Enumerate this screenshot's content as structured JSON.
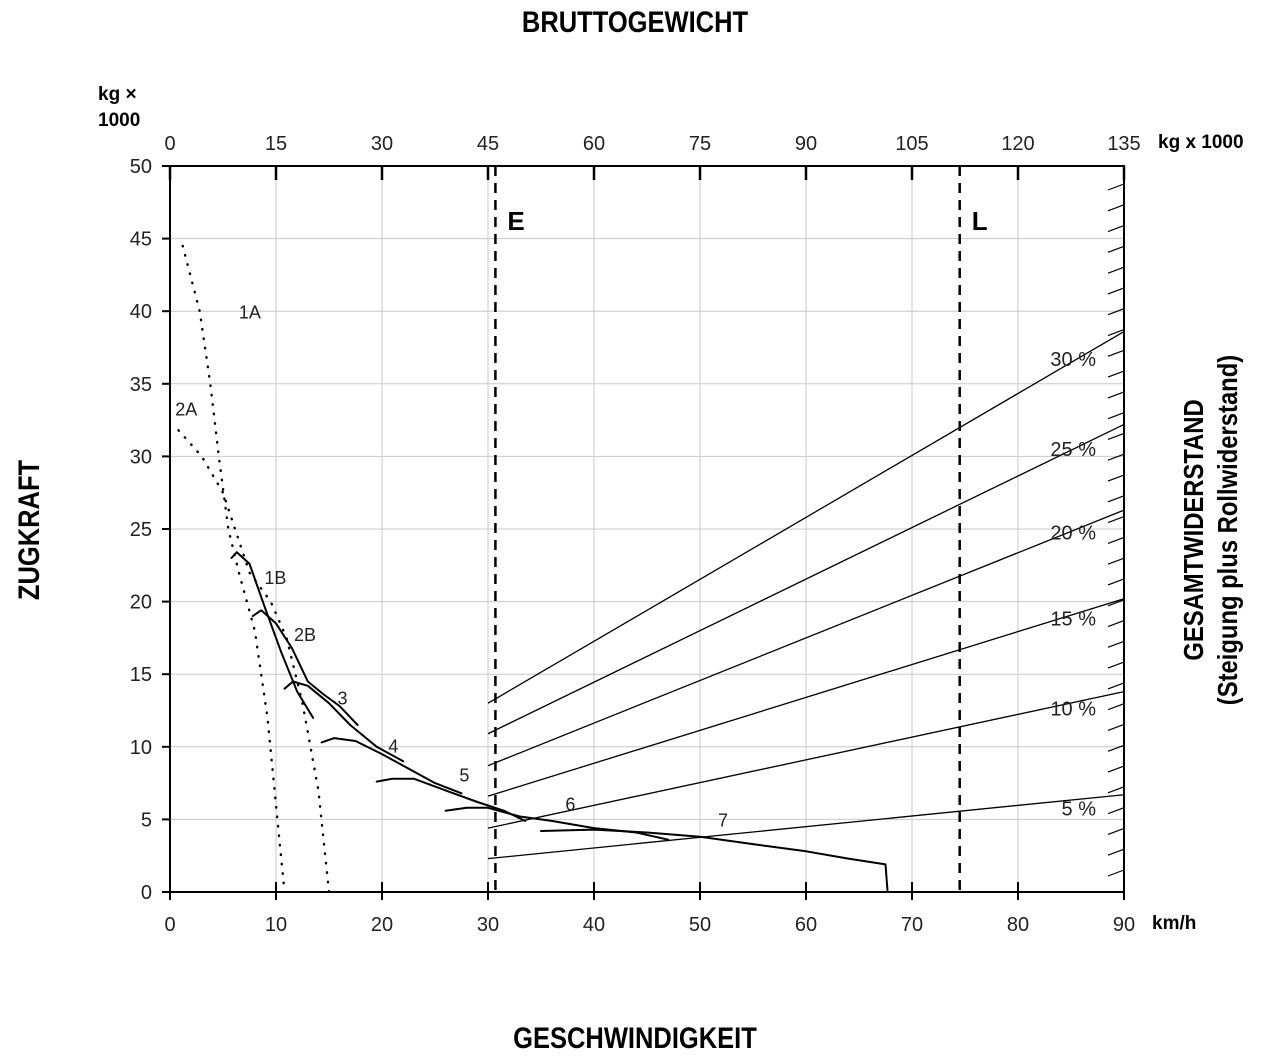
{
  "labels": {
    "top_title": "BRUTTOGEWICHT",
    "bottom_title": "GESCHWINDIGKEIT",
    "left_title": "ZUGKRAFT",
    "right_title_line1": "GESAMTWIDERSTAND",
    "right_title_line2": "(Steigung plus Rollwiderstand)",
    "left_unit_line1": "kg ×",
    "left_unit_line2": "1000",
    "top_unit": "kg x 1000",
    "bottom_unit": "km/h"
  },
  "chart_data": {
    "type": "line",
    "title": "",
    "xlabel": "GESCHWINDIGKEIT",
    "ylabel": "ZUGKRAFT",
    "x_unit": "km/h",
    "y_unit": "kg × 1000",
    "xlim": [
      0,
      90
    ],
    "ylim": [
      0,
      50
    ],
    "x_ticks": [
      "0",
      "10",
      "20",
      "30",
      "40",
      "50",
      "60",
      "70",
      "80",
      "90"
    ],
    "y_ticks": [
      "0",
      "5",
      "10",
      "15",
      "20",
      "25",
      "30",
      "35",
      "40",
      "45",
      "50"
    ],
    "top_axis": {
      "label": "BRUTTOGEWICHT",
      "unit": "kg x 1000",
      "range": [
        0,
        135
      ],
      "ticks": [
        "0",
        "15",
        "30",
        "45",
        "60",
        "75",
        "90",
        "105",
        "120",
        "135"
      ]
    },
    "grid": true,
    "reference_lines": [
      {
        "name": "E",
        "x": 30.7
      },
      {
        "name": "L",
        "x": 74.5
      }
    ],
    "rimpull_series": [
      {
        "name": "1A",
        "style": "dotted",
        "points": [
          [
            1.2,
            44.5
          ],
          [
            2.8,
            40
          ],
          [
            3.8,
            35
          ],
          [
            4.6,
            30
          ],
          [
            5.5,
            25
          ],
          [
            6.5,
            22
          ],
          [
            8,
            18
          ],
          [
            9.2,
            12
          ],
          [
            10,
            6
          ],
          [
            10.8,
            0
          ]
        ]
      },
      {
        "name": "2A",
        "style": "dotted",
        "points": [
          [
            0.8,
            31.8
          ],
          [
            3,
            30
          ],
          [
            5,
            27.5
          ],
          [
            7.5,
            22
          ],
          [
            9.5,
            20
          ],
          [
            11,
            17.5
          ],
          [
            12.5,
            13
          ],
          [
            14,
            7
          ],
          [
            15,
            0
          ]
        ]
      },
      {
        "name": "1B",
        "style": "solid",
        "points": [
          [
            5.8,
            23
          ],
          [
            6.3,
            23.4
          ],
          [
            7.5,
            22.6
          ],
          [
            9,
            19.5
          ],
          [
            10.5,
            16.5
          ],
          [
            12,
            13.8
          ],
          [
            13.5,
            12
          ]
        ]
      },
      {
        "name": "2B",
        "style": "solid",
        "points": [
          [
            7.8,
            19
          ],
          [
            8.6,
            19.4
          ],
          [
            10,
            18.5
          ],
          [
            11.5,
            16.8
          ],
          [
            13,
            14.5
          ],
          [
            14.5,
            13.6
          ],
          [
            16,
            12.8
          ],
          [
            17.7,
            11.5
          ]
        ]
      },
      {
        "name": "3",
        "style": "solid",
        "points": [
          [
            10.8,
            14
          ],
          [
            11.6,
            14.5
          ],
          [
            13,
            14.2
          ],
          [
            15,
            13
          ],
          [
            17,
            11.5
          ],
          [
            19.5,
            10
          ],
          [
            22,
            9
          ]
        ]
      },
      {
        "name": "4",
        "style": "solid",
        "points": [
          [
            14.3,
            10.3
          ],
          [
            15.5,
            10.6
          ],
          [
            17.5,
            10.4
          ],
          [
            20,
            9.5
          ],
          [
            23,
            8.3
          ],
          [
            25,
            7.5
          ],
          [
            27.5,
            6.8
          ]
        ]
      },
      {
        "name": "5",
        "style": "solid",
        "points": [
          [
            19.5,
            7.6
          ],
          [
            21,
            7.8
          ],
          [
            23,
            7.8
          ],
          [
            26,
            7
          ],
          [
            29,
            6.2
          ],
          [
            31.5,
            5.6
          ],
          [
            33.5,
            4.9
          ]
        ]
      },
      {
        "name": "6",
        "style": "solid",
        "points": [
          [
            26,
            5.6
          ],
          [
            28,
            5.8
          ],
          [
            30,
            5.8
          ],
          [
            33,
            5.2
          ],
          [
            36,
            4.9
          ],
          [
            40,
            4.4
          ],
          [
            44,
            4.1
          ],
          [
            47,
            3.6
          ]
        ]
      },
      {
        "name": "7",
        "style": "solid",
        "points": [
          [
            35,
            4.2
          ],
          [
            40,
            4.3
          ],
          [
            45,
            4.1
          ],
          [
            50,
            3.8
          ],
          [
            55,
            3.3
          ],
          [
            60,
            2.8
          ],
          [
            64,
            2.3
          ],
          [
            67.5,
            1.9
          ],
          [
            67.7,
            0
          ]
        ]
      }
    ],
    "resistance_lines": [
      {
        "name": "30 %",
        "label": "30 %",
        "x": [
          30,
          90
        ],
        "y": [
          13.0,
          38.6
        ]
      },
      {
        "name": "25 %",
        "label": "25 %",
        "x": [
          30,
          90
        ],
        "y": [
          10.9,
          32.2
        ]
      },
      {
        "name": "20 %",
        "label": "20 %",
        "x": [
          30,
          90
        ],
        "y": [
          8.7,
          26.3
        ]
      },
      {
        "name": "15 %",
        "label": "15 %",
        "x": [
          30,
          90
        ],
        "y": [
          6.6,
          20.2
        ]
      },
      {
        "name": "10 %",
        "label": "10 %",
        "x": [
          30,
          90
        ],
        "y": [
          4.4,
          13.8
        ]
      },
      {
        "name": "5 %",
        "label": "5 %",
        "x": [
          30,
          90
        ],
        "y": [
          2.3,
          6.7
        ]
      }
    ],
    "right_scale_ticks": 34
  },
  "colors": {
    "line": "#000000",
    "grid": "#c8c8c8",
    "background": "#ffffff"
  }
}
